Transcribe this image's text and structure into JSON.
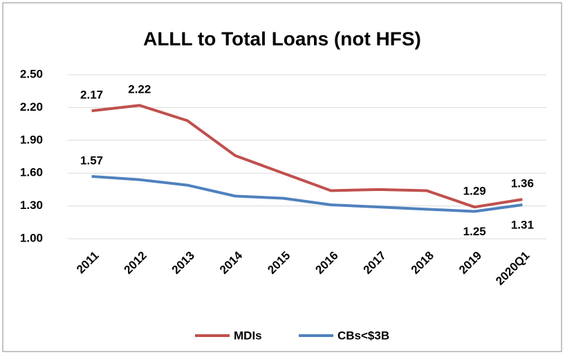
{
  "chart_data": {
    "type": "line",
    "title": "ALLL to Total Loans (not HFS)",
    "categories": [
      "2011",
      "2012",
      "2013",
      "2014",
      "2015",
      "2016",
      "2017",
      "2018",
      "2019",
      "2020Q1"
    ],
    "series": [
      {
        "name": "MDIs",
        "color": "#c0504d",
        "values": [
          2.17,
          2.22,
          2.08,
          1.76,
          1.6,
          1.44,
          1.45,
          1.44,
          1.29,
          1.36
        ],
        "value_labels": [
          "2.17",
          "2.22",
          null,
          null,
          null,
          null,
          null,
          null,
          "1.29",
          "1.36"
        ]
      },
      {
        "name": "CBs<$3B",
        "color": "#4f81bd",
        "values": [
          1.57,
          1.54,
          1.49,
          1.39,
          1.37,
          1.31,
          1.29,
          1.27,
          1.25,
          1.31
        ],
        "value_labels": [
          "1.57",
          null,
          null,
          null,
          null,
          null,
          null,
          null,
          "1.25",
          "1.31"
        ]
      }
    ],
    "ylim": [
      1.0,
      2.5
    ],
    "yticks": [
      {
        "value": 1.0,
        "label": "1.00"
      },
      {
        "value": 1.3,
        "label": "1.30"
      },
      {
        "value": 1.6,
        "label": "1.60"
      },
      {
        "value": 1.9,
        "label": "1.90"
      },
      {
        "value": 2.2,
        "label": "2.20"
      },
      {
        "value": 2.5,
        "label": "2.50"
      }
    ],
    "grid": true,
    "legend": "bottom"
  }
}
